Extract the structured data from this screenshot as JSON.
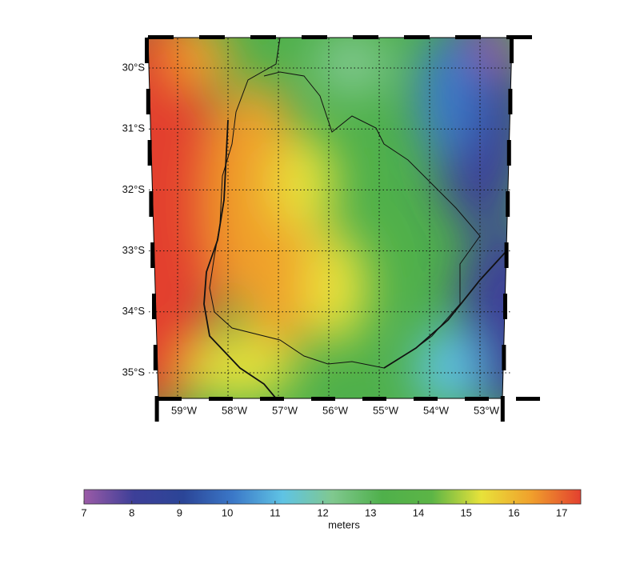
{
  "map": {
    "lat_labels": [
      "30°S",
      "31°S",
      "32°S",
      "33°S",
      "34°S",
      "35°S"
    ],
    "lon_labels": [
      "59°W",
      "58°W",
      "57°W",
      "56°W",
      "55°W",
      "54°W",
      "53°W"
    ]
  },
  "colorbar": {
    "label": "meters",
    "range": [
      7,
      17.4
    ],
    "ticks": [
      7,
      8,
      9,
      10,
      11,
      12,
      13,
      14,
      15,
      16,
      17
    ],
    "colors": [
      "#9b5ba7",
      "#3d3f98",
      "#2b4597",
      "#3b78c8",
      "#5fc3e4",
      "#80c88f",
      "#4fb04b",
      "#5cb546",
      "#e8e23a",
      "#f0a02c",
      "#e3402f"
    ]
  }
}
